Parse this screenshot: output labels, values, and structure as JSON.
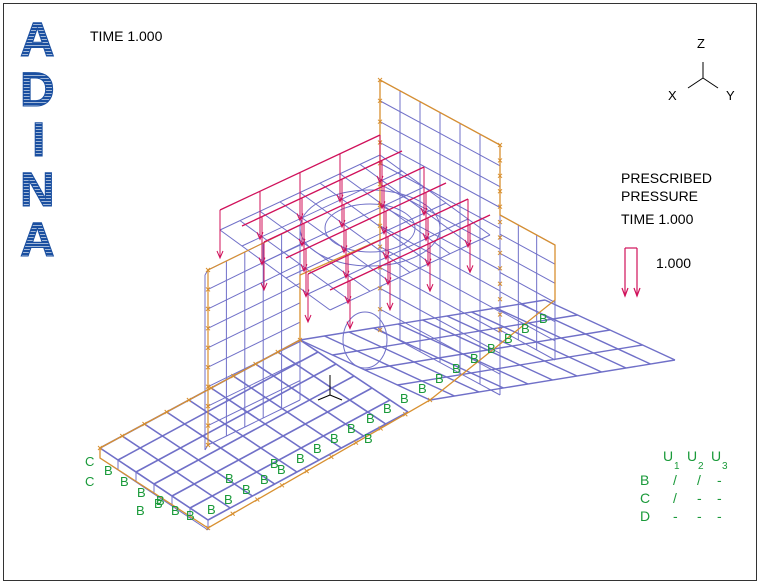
{
  "logo_letters": [
    "A",
    "D",
    "I",
    "N",
    "A"
  ],
  "time_label": "TIME 1.000",
  "axes": {
    "z": "Z",
    "x": "X",
    "y": "Y"
  },
  "legend": {
    "line1": "PRESCRIBED",
    "line2": "PRESSURE",
    "time": "TIME 1.000",
    "value": "1.000"
  },
  "bc_table": {
    "headers": [
      "U",
      "U",
      "U"
    ],
    "header_subs": [
      "1",
      "2",
      "3"
    ],
    "rows": [
      {
        "label": "B",
        "cells": [
          "/",
          "/",
          "-"
        ]
      },
      {
        "label": "C",
        "cells": [
          "/",
          "-",
          "-"
        ]
      },
      {
        "label": "D",
        "cells": [
          "-",
          "-",
          "-"
        ]
      }
    ]
  },
  "bc_marker_B": "B",
  "bc_marker_C": "C",
  "colors": {
    "mesh": "#7070c8",
    "boundary": "#d89030",
    "pressure": "#d0105a",
    "bc_text": "#1a9a3a",
    "logo": "#1a4fa0"
  }
}
